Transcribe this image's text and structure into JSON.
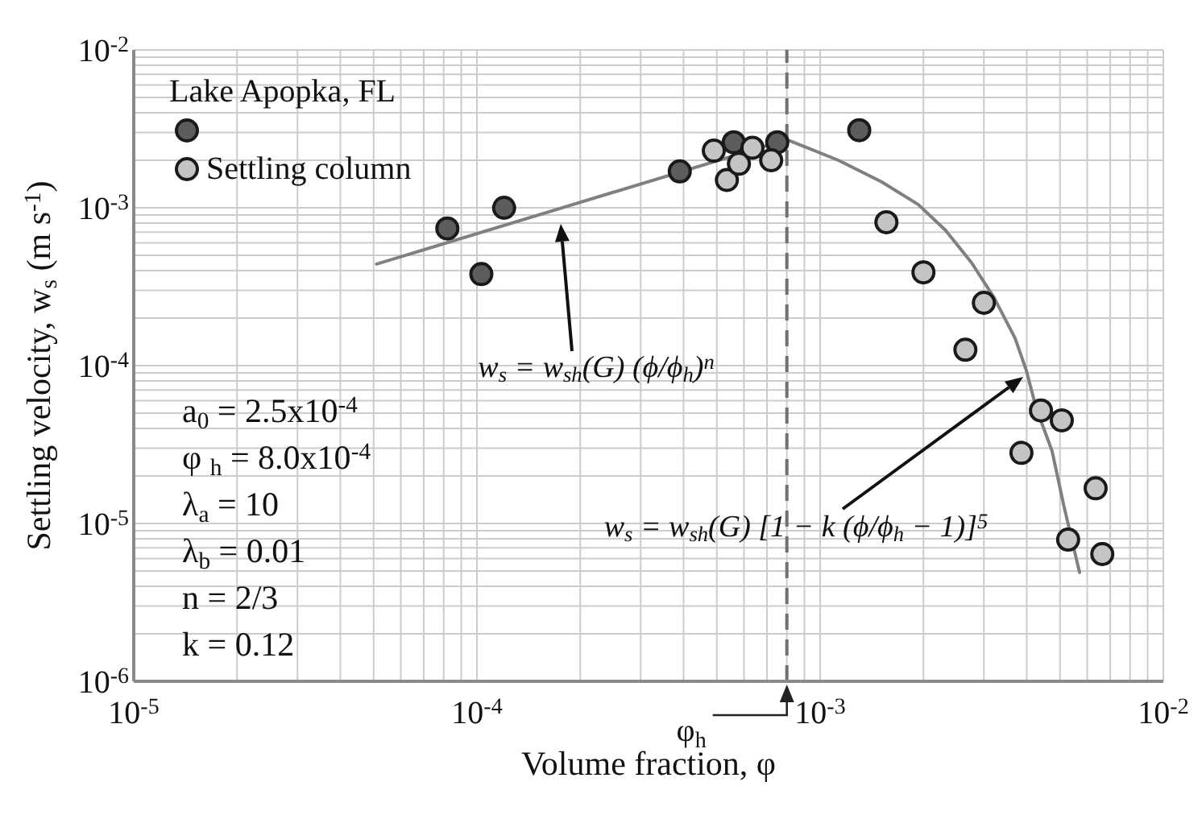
{
  "chart_data": {
    "type": "scatter",
    "xlabel": "Volume fraction, φ",
    "ylabel": "Settling velocity, w$_{s}$ (m s$^{-1}$)",
    "legend_title": "Lake Apopka, FL",
    "log": "xy",
    "grid": true,
    "legend": "top left",
    "marker": "circle",
    "xlim": [
      1e-05,
      0.01
    ],
    "ylim": [
      1e-06,
      0.01
    ],
    "xticks": [
      {
        "value": 1e-05,
        "label": "10$^{-5}$"
      },
      {
        "value": 2e-05,
        "label": null
      },
      {
        "value": 3e-05,
        "label": null
      },
      {
        "value": 4e-05,
        "label": null
      },
      {
        "value": 5e-05,
        "label": null
      },
      {
        "value": 6e-05,
        "label": null
      },
      {
        "value": 7e-05,
        "label": null
      },
      {
        "value": 8e-05,
        "label": null
      },
      {
        "value": 9e-05,
        "label": null
      },
      {
        "value": 0.0001,
        "label": "10$^{-4}$"
      },
      {
        "value": 0.0002,
        "label": null
      },
      {
        "value": 0.0003,
        "label": null
      },
      {
        "value": 0.0004,
        "label": null
      },
      {
        "value": 0.0005,
        "label": null
      },
      {
        "value": 0.0006,
        "label": null
      },
      {
        "value": 0.0007,
        "label": null
      },
      {
        "value": 0.0008,
        "label": null
      },
      {
        "value": 0.0009,
        "label": null
      },
      {
        "value": 0.001,
        "label": "10$^{-3}$"
      },
      {
        "value": 0.002,
        "label": null
      },
      {
        "value": 0.003,
        "label": null
      },
      {
        "value": 0.004,
        "label": null
      },
      {
        "value": 0.005,
        "label": null
      },
      {
        "value": 0.006,
        "label": null
      },
      {
        "value": 0.007,
        "label": null
      },
      {
        "value": 0.008,
        "label": null
      },
      {
        "value": 0.009,
        "label": null
      },
      {
        "value": 0.01,
        "label": "10$^{-2}$"
      }
    ],
    "yticks": [
      {
        "value": 1e-06,
        "label": "10$^{-6}$"
      },
      {
        "value": 2e-06,
        "label": null
      },
      {
        "value": 3e-06,
        "label": null
      },
      {
        "value": 4e-06,
        "label": null
      },
      {
        "value": 5e-06,
        "label": null
      },
      {
        "value": 6e-06,
        "label": null
      },
      {
        "value": 7e-06,
        "label": null
      },
      {
        "value": 8e-06,
        "label": null
      },
      {
        "value": 9e-06,
        "label": null
      },
      {
        "value": 1e-05,
        "label": "10$^{-5}$"
      },
      {
        "value": 2e-05,
        "label": null
      },
      {
        "value": 3e-05,
        "label": null
      },
      {
        "value": 4e-05,
        "label": null
      },
      {
        "value": 5e-05,
        "label": null
      },
      {
        "value": 6e-05,
        "label": null
      },
      {
        "value": 7e-05,
        "label": null
      },
      {
        "value": 8e-05,
        "label": null
      },
      {
        "value": 9e-05,
        "label": null
      },
      {
        "value": 0.0001,
        "label": "10$^{-4}$"
      },
      {
        "value": 0.0002,
        "label": null
      },
      {
        "value": 0.0003,
        "label": null
      },
      {
        "value": 0.0004,
        "label": null
      },
      {
        "value": 0.0005,
        "label": null
      },
      {
        "value": 0.0006,
        "label": null
      },
      {
        "value": 0.0007,
        "label": null
      },
      {
        "value": 0.0008,
        "label": null
      },
      {
        "value": 0.0009,
        "label": null
      },
      {
        "value": 0.001,
        "label": "10$^{-3}$"
      },
      {
        "value": 0.002,
        "label": null
      },
      {
        "value": 0.003,
        "label": null
      },
      {
        "value": 0.004,
        "label": null
      },
      {
        "value": 0.005,
        "label": null
      },
      {
        "value": 0.006,
        "label": null
      },
      {
        "value": 0.007,
        "label": null
      },
      {
        "value": 0.008,
        "label": null
      },
      {
        "value": 0.009,
        "label": null
      },
      {
        "value": 0.01,
        "label": "10$^{-2}$"
      }
    ],
    "series": [
      {
        "type": "line",
        "marker": "none",
        "color": "#808080",
        "x": [
          5.1e-05,
          0.0008
        ],
        "values": [
          0.00044,
          0.0027
        ]
      },
      {
        "type": "line",
        "marker": "none",
        "color": "#808080",
        "x": [
          0.0008,
          0.00113,
          0.00151,
          0.00193,
          0.00232,
          0.00276,
          0.00321,
          0.0037,
          0.00399,
          0.00426,
          0.00474,
          0.00512,
          0.0057
        ],
        "values": [
          0.0027,
          0.002,
          0.00146,
          0.00105,
          0.00072,
          0.00045,
          0.00027,
          0.000149,
          9.3e-05,
          5.4e-05,
          2.88e-05,
          1.32e-05,
          4.9e-06
        ]
      },
      {
        "color": "#5c5c5c",
        "x": [
          8.2e-05,
          0.000103,
          0.00012,
          0.00039,
          0.00056,
          0.00075,
          0.0013
        ],
        "values": [
          0.00074,
          0.00038,
          0.001,
          0.0017,
          0.0026,
          0.0026,
          0.0031
        ]
      },
      {
        "name": "Settling column",
        "color": "#c4c4c4",
        "x": [
          0.00049,
          0.000535,
          0.00058,
          0.000635,
          0.00072,
          0.00156,
          0.002,
          0.00265,
          0.003,
          0.00386,
          0.0044,
          0.00506,
          0.00528,
          0.00635,
          0.00664
        ],
        "values": [
          0.0023,
          0.0015,
          0.0019,
          0.0024,
          0.002,
          0.00081,
          0.00039,
          0.000126,
          0.00025,
          2.8e-05,
          5.2e-05,
          4.5e-05,
          7.9e-06,
          1.67e-05,
          6.4e-06
        ]
      }
    ],
    "ref_lines": [
      {
        "axis": "x",
        "value": 0.0008,
        "label": "φ$_{h}$",
        "color": "#707070",
        "line_style": "dashed"
      }
    ],
    "annotations": [
      "w$_{s}$ = w$_{sh}$(G) (ϕ/ϕ$_{h}$)$^{n}$",
      "w$_{s}$ = w$_{sh}$(G) [1 − k (ϕ/ϕ$_{h}$ − 1)]$^{5}$",
      "a$_{0}$ = 2.5x10$^{-4}$",
      "φ $_{h}$ = 8.0x10$^{-4}$",
      "λ$_{a}$ = 10",
      "λ$_{b}$ = 0.01",
      "n = 2/3",
      "k = 0.12"
    ]
  }
}
